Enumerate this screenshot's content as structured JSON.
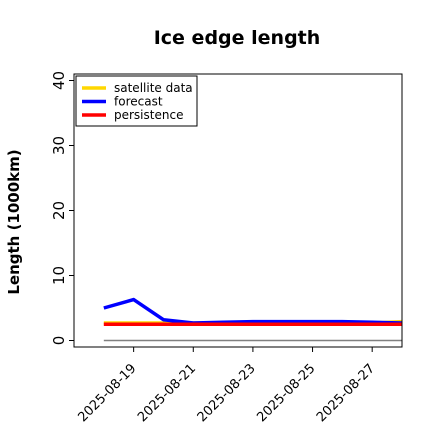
{
  "chart_data": {
    "type": "line",
    "title": "Ice edge length",
    "ylabel": "Length (1000km)",
    "xlabel": "",
    "ylim": [
      -1,
      41
    ],
    "yticks": [
      0,
      10,
      20,
      30,
      40
    ],
    "x": [
      "2025-08-18",
      "2025-08-19",
      "2025-08-20",
      "2025-08-21",
      "2025-08-22",
      "2025-08-23",
      "2025-08-24",
      "2025-08-25",
      "2025-08-26",
      "2025-08-27",
      "2025-08-28"
    ],
    "xlim": [
      "2025-08-17",
      "2025-08-28"
    ],
    "xticks": [
      "2025-08-19",
      "2025-08-21",
      "2025-08-23",
      "2025-08-25",
      "2025-08-27"
    ],
    "highlight_tick": {
      "label": "2025-08-19",
      "color": "#228b22"
    },
    "series": [
      {
        "name": "satellite data",
        "color": "#ffd700",
        "values": [
          2.7,
          2.7,
          2.7,
          2.7,
          2.7,
          2.7,
          2.7,
          2.7,
          2.7,
          2.7,
          2.9
        ]
      },
      {
        "name": "forecast",
        "color": "#0000ff",
        "values": [
          5.0,
          6.3,
          3.2,
          2.7,
          2.8,
          2.9,
          2.9,
          2.9,
          2.9,
          2.8,
          2.7
        ]
      },
      {
        "name": "persistence",
        "color": "#ff0000",
        "values": [
          2.5,
          2.5,
          2.5,
          2.5,
          2.5,
          2.5,
          2.5,
          2.5,
          2.5,
          2.5,
          2.5
        ]
      }
    ],
    "reference_line": {
      "y": 0,
      "color": "#808080"
    },
    "legend": "top-left",
    "grid": false
  }
}
